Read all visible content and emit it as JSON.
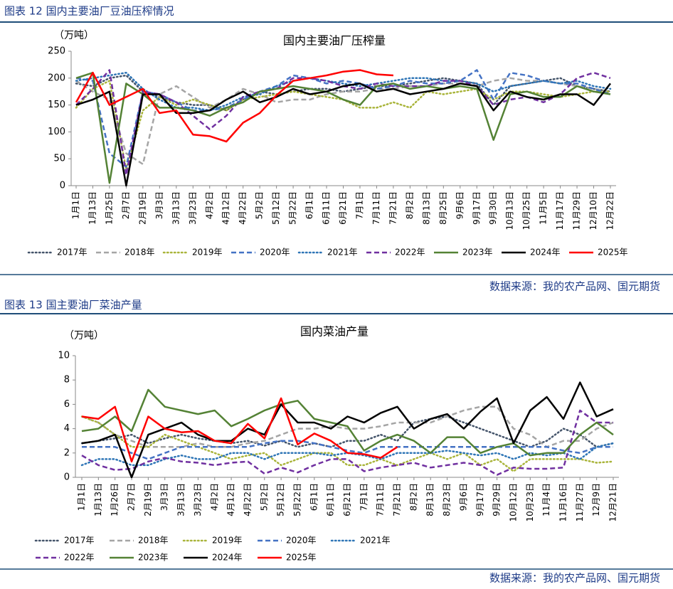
{
  "figure_labels": [
    "图表 12 国内主要油厂豆油压榨情况",
    "图表 13 国主要油厂菜油产量"
  ],
  "sources": [
    "数据来源：我的农产品网、国元期货",
    "数据来源：我的农产品网、国元期货"
  ],
  "chart_data": [
    {
      "type": "line",
      "title": "国内主要油厂压榨量",
      "y_label": "（万吨）",
      "categories": [
        "1月1日",
        "1月13日",
        "1月25日",
        "2月7日",
        "2月19日",
        "3月3日",
        "3月13日",
        "3月23日",
        "4月2日",
        "4月12日",
        "4月22日",
        "5月2日",
        "5月12日",
        "5月22日",
        "6月1日",
        "6月11日",
        "6月21日",
        "7月1日",
        "7月11日",
        "7月21日",
        "8月2日",
        "8月13日",
        "8月25日",
        "9月6日",
        "9月17日",
        "9月30日",
        "10月13日",
        "10月25日",
        "11月5日",
        "11月17日",
        "11月29日",
        "12月10日",
        "12月22日"
      ],
      "ylim": [
        0,
        250
      ],
      "yticks": [
        0,
        50,
        100,
        150,
        200,
        250
      ],
      "legend": "bottom",
      "series": [
        {
          "name": "2017年",
          "color": "#44546a",
          "style": "dotted",
          "values": [
            190,
            185,
            200,
            205,
            175,
            165,
            155,
            150,
            150,
            140,
            160,
            175,
            170,
            175,
            180,
            180,
            175,
            180,
            185,
            185,
            190,
            195,
            200,
            195,
            190,
            150,
            185,
            190,
            195,
            200,
            185,
            180,
            175
          ]
        },
        {
          "name": "2018年",
          "color": "#a5a5a5",
          "style": "dashed",
          "values": [
            195,
            175,
            160,
            60,
            40,
            170,
            185,
            165,
            145,
            160,
            180,
            170,
            155,
            160,
            160,
            170,
            175,
            175,
            180,
            180,
            185,
            185,
            190,
            190,
            185,
            195,
            200,
            195,
            195,
            190,
            185,
            180,
            175
          ]
        },
        {
          "name": "2019年",
          "color": "#a9b43a",
          "style": "dotted",
          "values": [
            145,
            180,
            195,
            30,
            140,
            165,
            150,
            160,
            150,
            140,
            160,
            165,
            170,
            175,
            170,
            165,
            160,
            145,
            145,
            155,
            145,
            175,
            170,
            175,
            180,
            160,
            175,
            175,
            170,
            165,
            170,
            175,
            175
          ]
        },
        {
          "name": "2020年",
          "color": "#4472c4",
          "style": "dashed",
          "values": [
            200,
            195,
            60,
            35,
            175,
            170,
            155,
            140,
            140,
            145,
            160,
            175,
            185,
            205,
            200,
            190,
            195,
            190,
            180,
            185,
            195,
            190,
            190,
            195,
            215,
            160,
            210,
            205,
            195,
            190,
            190,
            180,
            170
          ]
        },
        {
          "name": "2021年",
          "color": "#2e75b6",
          "style": "dotted",
          "values": [
            195,
            200,
            205,
            210,
            180,
            160,
            145,
            145,
            140,
            150,
            165,
            170,
            185,
            195,
            200,
            195,
            190,
            185,
            190,
            195,
            200,
            200,
            195,
            195,
            190,
            175,
            185,
            190,
            195,
            190,
            195,
            185,
            180
          ]
        },
        {
          "name": "2022年",
          "color": "#7030a0",
          "style": "dashed",
          "values": [
            150,
            180,
            215,
            20,
            175,
            170,
            155,
            130,
            105,
            130,
            165,
            175,
            180,
            200,
            200,
            195,
            185,
            180,
            190,
            185,
            185,
            185,
            195,
            195,
            185,
            150,
            160,
            165,
            155,
            170,
            200,
            210,
            200
          ]
        },
        {
          "name": "2023年",
          "color": "#548235",
          "style": "solid",
          "values": [
            200,
            210,
            5,
            190,
            170,
            145,
            145,
            140,
            130,
            145,
            155,
            175,
            180,
            185,
            180,
            175,
            160,
            150,
            185,
            190,
            180,
            185,
            180,
            185,
            180,
            85,
            170,
            175,
            165,
            165,
            185,
            175,
            170
          ]
        },
        {
          "name": "2024年",
          "color": "#000000",
          "style": "solid",
          "values": [
            150,
            160,
            175,
            0,
            170,
            170,
            135,
            135,
            140,
            160,
            175,
            155,
            165,
            180,
            170,
            175,
            185,
            190,
            175,
            180,
            170,
            175,
            180,
            190,
            185,
            140,
            175,
            165,
            160,
            170,
            170,
            150,
            190
          ]
        },
        {
          "name": "2025年",
          "color": "#ff0000",
          "style": "solid",
          "values": [
            155,
            210,
            150,
            165,
            180,
            135,
            140,
            95,
            92,
            82,
            117,
            135,
            168,
            195,
            200,
            205,
            212,
            215,
            207,
            205,
            null,
            null,
            null,
            null,
            null,
            null,
            null,
            null,
            null,
            null,
            null,
            null,
            null
          ]
        }
      ]
    },
    {
      "type": "line",
      "title": "国内菜油产量",
      "y_label": "（万吨）",
      "categories": [
        "1月1日",
        "1月13日",
        "1月26日",
        "2月7日",
        "2月19日",
        "3月3日",
        "3月13日",
        "3月23日",
        "4月2日",
        "4月12日",
        "4月22日",
        "5月2日",
        "5月12日",
        "5月22日",
        "6月1日",
        "6月11日",
        "6月21日",
        "7月1日",
        "7月11日",
        "7月21日",
        "8月2日",
        "8月13日",
        "8月23日",
        "9月6日",
        "9月17日",
        "9月29日",
        "10月12日",
        "10月23日",
        "11月4日",
        "11月16日",
        "11月27日",
        "12月9日",
        "12月21日"
      ],
      "ylim": [
        0,
        10
      ],
      "yticks": [
        0,
        2,
        4,
        6,
        8,
        10
      ],
      "legend": "bottom",
      "series": [
        {
          "name": "2017年",
          "color": "#44546a",
          "style": "dotted",
          "values": [
            2.8,
            3.0,
            3.2,
            3.5,
            2.8,
            3.2,
            3.5,
            3.2,
            3.0,
            2.8,
            3.0,
            2.6,
            3.0,
            2.5,
            2.8,
            2.5,
            3.0,
            3.0,
            3.5,
            3.0,
            4.5,
            4.8,
            5.0,
            4.5,
            4.0,
            3.5,
            3.0,
            2.5,
            3.0,
            4.0,
            3.5,
            2.5,
            2.8
          ]
        },
        {
          "name": "2018年",
          "color": "#a5a5a5",
          "style": "dashed",
          "values": [
            5.0,
            4.5,
            3.5,
            3.0,
            2.5,
            2.5,
            2.5,
            2.8,
            2.5,
            2.5,
            2.8,
            3.0,
            3.5,
            4.0,
            4.0,
            4.2,
            4.0,
            4.0,
            4.2,
            4.5,
            4.5,
            4.5,
            5.0,
            5.5,
            5.8,
            5.8,
            4.0,
            3.5,
            2.5,
            3.0,
            3.0,
            4.0,
            4.5
          ]
        },
        {
          "name": "2019年",
          "color": "#a9b43a",
          "style": "dotted",
          "values": [
            5.0,
            4.5,
            3.5,
            2.5,
            2.5,
            3.5,
            3.0,
            2.5,
            2.0,
            1.5,
            1.8,
            2.0,
            1.0,
            1.5,
            2.0,
            2.0,
            1.0,
            1.0,
            1.5,
            1.0,
            1.5,
            2.0,
            1.5,
            2.0,
            1.0,
            1.5,
            0.5,
            1.5,
            1.5,
            1.5,
            1.5,
            1.2,
            1.3
          ]
        },
        {
          "name": "2020年",
          "color": "#4472c4",
          "style": "dashed",
          "values": [
            2.5,
            2.5,
            2.5,
            2.0,
            1.5,
            2.0,
            2.5,
            2.5,
            2.5,
            2.5,
            2.5,
            2.8,
            3.0,
            3.0,
            2.8,
            2.5,
            2.2,
            2.0,
            2.5,
            2.5,
            2.5,
            2.5,
            2.5,
            2.5,
            2.5,
            2.5,
            2.5,
            2.5,
            2.5,
            2.2,
            2.0,
            2.5,
            2.5
          ]
        },
        {
          "name": "2021年",
          "color": "#2e75b6",
          "style": "dotted",
          "values": [
            1.0,
            1.5,
            1.5,
            1.0,
            1.0,
            1.5,
            1.8,
            1.5,
            1.5,
            2.0,
            2.0,
            1.5,
            2.0,
            2.0,
            2.0,
            1.8,
            2.0,
            1.8,
            1.5,
            2.0,
            2.0,
            2.0,
            2.2,
            2.0,
            1.8,
            2.0,
            1.5,
            2.0,
            1.8,
            2.0,
            1.5,
            2.5,
            2.8
          ]
        },
        {
          "name": "2022年",
          "color": "#7030a0",
          "style": "dashed",
          "values": [
            1.8,
            1.0,
            0.6,
            0.7,
            1.3,
            1.6,
            1.3,
            1.2,
            1.0,
            1.2,
            1.3,
            0.3,
            0.8,
            0.4,
            1.0,
            1.5,
            1.5,
            0.5,
            0.8,
            1.0,
            1.2,
            0.8,
            1.0,
            1.2,
            1.0,
            0.2,
            0.8,
            0.7,
            0.7,
            0.8,
            5.5,
            4.5,
            4.5
          ]
        },
        {
          "name": "2023年",
          "color": "#548235",
          "style": "solid",
          "values": [
            3.8,
            4.0,
            5.0,
            3.8,
            7.2,
            5.8,
            5.5,
            5.2,
            5.5,
            4.2,
            4.8,
            5.5,
            6.0,
            6.3,
            4.8,
            4.5,
            4.2,
            2.2,
            3.0,
            3.5,
            3.0,
            2.0,
            3.3,
            3.3,
            2.0,
            2.5,
            2.8,
            1.8,
            2.0,
            2.0,
            3.5,
            4.5,
            3.5
          ]
        },
        {
          "name": "2024年",
          "color": "#000000",
          "style": "solid",
          "values": [
            2.8,
            3.0,
            3.5,
            0.0,
            3.5,
            4.0,
            4.5,
            3.5,
            3.0,
            3.0,
            4.0,
            3.5,
            6.0,
            4.5,
            4.5,
            4.0,
            5.0,
            4.5,
            5.3,
            5.8,
            4.0,
            4.8,
            5.2,
            4.0,
            5.4,
            6.5,
            2.8,
            5.5,
            6.6,
            4.8,
            7.8,
            5.0,
            5.6
          ]
        },
        {
          "name": "2025年",
          "color": "#ff0000",
          "style": "solid",
          "values": [
            5.0,
            4.8,
            5.8,
            1.3,
            5.0,
            4.0,
            3.7,
            3.8,
            3.0,
            2.8,
            4.4,
            3.2,
            6.5,
            2.7,
            3.6,
            3.0,
            2.0,
            1.9,
            1.6,
            2.5,
            null,
            null,
            null,
            null,
            null,
            null,
            null,
            null,
            null,
            null,
            null,
            null,
            null
          ]
        }
      ]
    }
  ]
}
